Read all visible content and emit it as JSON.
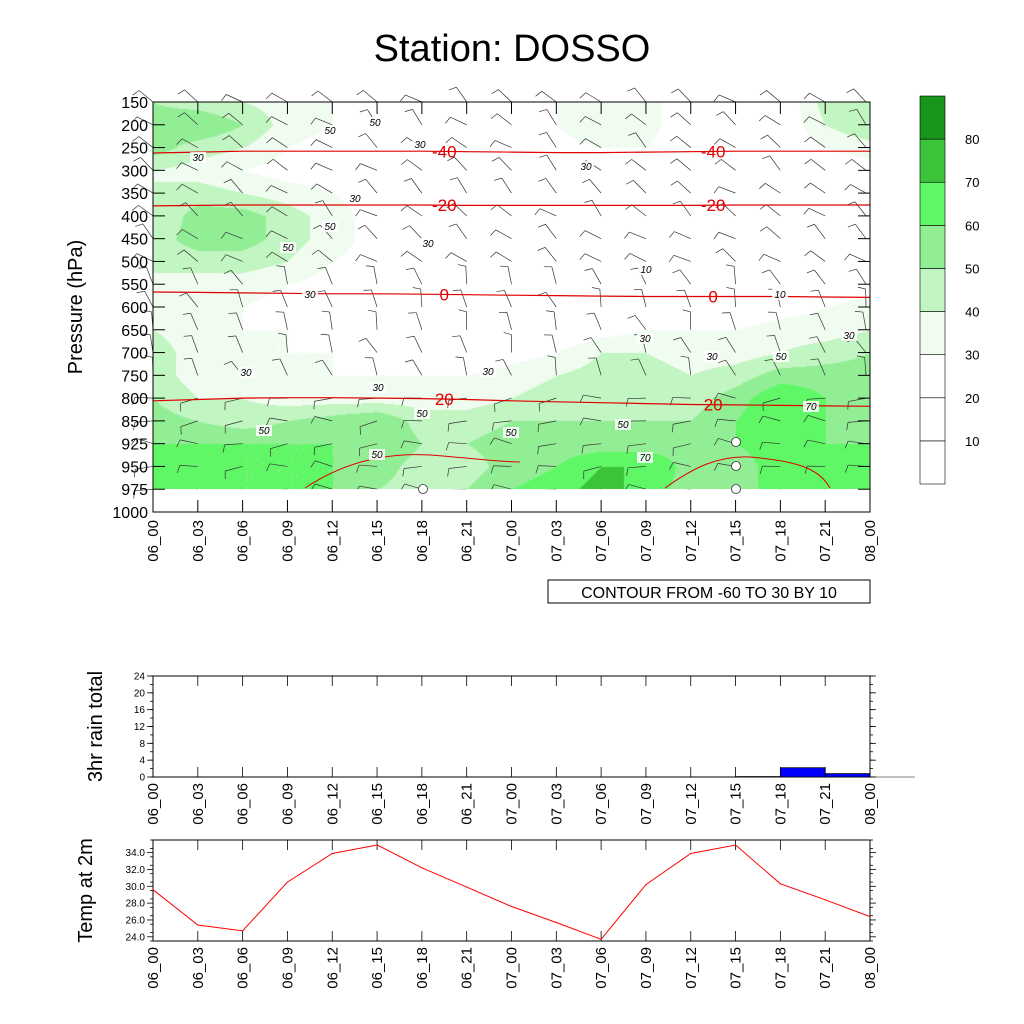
{
  "title": "Station: DOSSO",
  "chart_data": [
    {
      "type": "heatmap",
      "ylabel": "Pressure (hPa)",
      "y_ticks": [
        150,
        200,
        250,
        300,
        350,
        400,
        450,
        500,
        550,
        600,
        650,
        700,
        750,
        800,
        850,
        925,
        950,
        975,
        1000
      ],
      "x_ticks": [
        "06_00",
        "06_03",
        "06_06",
        "06_09",
        "06_12",
        "06_15",
        "06_18",
        "06_21",
        "07_00",
        "07_03",
        "07_06",
        "07_09",
        "07_12",
        "07_15",
        "07_18",
        "07_21",
        "08_00"
      ],
      "y_inverted": true,
      "colorbar": {
        "levels": [
          10,
          20,
          30,
          40,
          50,
          60,
          70,
          80
        ],
        "label_levels": [
          10,
          20,
          30,
          40,
          50,
          60,
          70,
          80
        ],
        "colors": [
          "#ffffff",
          "#ffffff",
          "#ffffff",
          "#f0fcef",
          "#c1f5c1",
          "#92ee94",
          "#5ff766",
          "#3bc43a",
          "#17961b"
        ]
      },
      "humidity_grid": [
        [
          50,
          45,
          40,
          35,
          30,
          30,
          20,
          20,
          20,
          30,
          40,
          35,
          20,
          20,
          20,
          45,
          50
        ],
        [
          55,
          60,
          50,
          35,
          30,
          25,
          20,
          20,
          20,
          30,
          40,
          35,
          20,
          20,
          20,
          40,
          50
        ],
        [
          55,
          45,
          40,
          30,
          25,
          25,
          20,
          20,
          20,
          25,
          30,
          30,
          20,
          20,
          20,
          30,
          35
        ],
        [
          40,
          35,
          30,
          25,
          25,
          25,
          20,
          20,
          20,
          20,
          20,
          20,
          20,
          20,
          20,
          20,
          25
        ],
        [
          40,
          45,
          40,
          35,
          30,
          25,
          20,
          20,
          20,
          20,
          20,
          20,
          20,
          20,
          20,
          20,
          20
        ],
        [
          40,
          55,
          55,
          45,
          35,
          25,
          20,
          20,
          20,
          20,
          15,
          20,
          20,
          20,
          20,
          20,
          20
        ],
        [
          45,
          55,
          55,
          45,
          35,
          25,
          20,
          20,
          20,
          20,
          15,
          20,
          20,
          20,
          20,
          20,
          20
        ],
        [
          45,
          45,
          45,
          40,
          30,
          25,
          20,
          20,
          20,
          20,
          20,
          20,
          20,
          20,
          20,
          20,
          25
        ],
        [
          35,
          35,
          35,
          30,
          25,
          20,
          20,
          20,
          20,
          20,
          20,
          20,
          20,
          20,
          20,
          20,
          25
        ],
        [
          35,
          30,
          30,
          25,
          25,
          20,
          20,
          20,
          20,
          20,
          20,
          20,
          20,
          20,
          25,
          30,
          35
        ],
        [
          40,
          35,
          30,
          30,
          25,
          20,
          20,
          20,
          20,
          20,
          25,
          30,
          30,
          30,
          35,
          35,
          40
        ],
        [
          45,
          35,
          30,
          30,
          30,
          25,
          20,
          20,
          25,
          30,
          40,
          40,
          35,
          35,
          40,
          45,
          50
        ],
        [
          45,
          35,
          30,
          30,
          30,
          30,
          30,
          30,
          35,
          40,
          45,
          45,
          40,
          45,
          55,
          55,
          55
        ],
        [
          50,
          40,
          40,
          35,
          35,
          35,
          35,
          35,
          40,
          45,
          45,
          45,
          45,
          55,
          70,
          60,
          55
        ],
        [
          55,
          50,
          45,
          50,
          55,
          60,
          45,
          45,
          50,
          50,
          50,
          50,
          50,
          60,
          70,
          60,
          55
        ],
        [
          60,
          60,
          60,
          60,
          60,
          60,
          50,
          50,
          55,
          55,
          55,
          55,
          55,
          60,
          65,
          60,
          60
        ],
        [
          65,
          65,
          60,
          60,
          60,
          55,
          45,
          45,
          55,
          60,
          70,
          70,
          55,
          55,
          65,
          65,
          65
        ],
        [
          70,
          65,
          60,
          60,
          60,
          50,
          45,
          50,
          60,
          65,
          75,
          65,
          55,
          55,
          65,
          65,
          65
        ]
      ],
      "temperature_contours": [
        {
          "label": "-40",
          "levels_hPa": [
            262,
            260,
            258,
            258,
            258,
            258,
            258,
            259,
            260,
            261,
            261,
            260,
            259,
            258,
            258,
            258,
            258
          ]
        },
        {
          "label": "-20",
          "levels_hPa": [
            378,
            377,
            376,
            376,
            376,
            376,
            376,
            377,
            377,
            377,
            377,
            377,
            377,
            376,
            376,
            376,
            376
          ]
        },
        {
          "label": "0",
          "levels_hPa": [
            567,
            568,
            569,
            570,
            571,
            571,
            572,
            573,
            574,
            575,
            576,
            577,
            577,
            577,
            577,
            578,
            579
          ]
        },
        {
          "label": "20",
          "levels_hPa": [
            806,
            803,
            800,
            799,
            799,
            800,
            801,
            803,
            806,
            808,
            810,
            812,
            814,
            815,
            816,
            817,
            818
          ]
        }
      ],
      "contour_labels": [
        "50",
        "50",
        "30",
        "30",
        "-40",
        "50",
        "30",
        "-40",
        "30",
        "30",
        "-20",
        "-20",
        "10",
        "10",
        "50",
        "30",
        "10",
        "0",
        "0",
        "10",
        "30",
        "30",
        "30",
        "30",
        "30",
        "50",
        "20",
        "20",
        "50",
        "50",
        "70",
        "50",
        "70",
        "50",
        "30",
        "50"
      ],
      "annotation": "CONTOUR FROM -60 TO 30 BY 10"
    },
    {
      "type": "bar",
      "ylabel": "3hr rain total",
      "categories": [
        "06_00",
        "06_03",
        "06_06",
        "06_09",
        "06_12",
        "06_15",
        "06_18",
        "06_21",
        "07_00",
        "07_03",
        "07_06",
        "07_09",
        "07_12",
        "07_15",
        "07_18",
        "07_21",
        "08_00"
      ],
      "values": [
        0,
        0,
        0,
        0,
        0,
        0,
        0,
        0,
        0,
        0,
        0,
        0,
        0,
        0.1,
        2.2,
        0.8,
        0
      ],
      "ylim": [
        0,
        24
      ],
      "y_ticks": [
        0,
        4,
        8,
        12,
        16,
        20,
        24
      ],
      "bar_color": "#0000ff"
    },
    {
      "type": "line",
      "ylabel": "Temp at 2m",
      "x": [
        "06_00",
        "06_03",
        "06_06",
        "06_09",
        "06_12",
        "06_15",
        "06_18",
        "06_21",
        "07_00",
        "07_03",
        "07_06",
        "07_09",
        "07_12",
        "07_15",
        "07_18",
        "07_21",
        "08_00"
      ],
      "values": [
        29.6,
        25.4,
        24.7,
        30.5,
        33.9,
        34.9,
        32.2,
        29.9,
        27.6,
        25.7,
        23.7,
        30.2,
        33.9,
        34.9,
        30.3,
        28.4,
        26.4
      ],
      "ylim": [
        23.5,
        35.5
      ],
      "y_ticks": [
        "24.0",
        "26.0",
        "28.0",
        "30.0",
        "32.0",
        "34.0"
      ],
      "line_color": "#ff0000"
    }
  ]
}
